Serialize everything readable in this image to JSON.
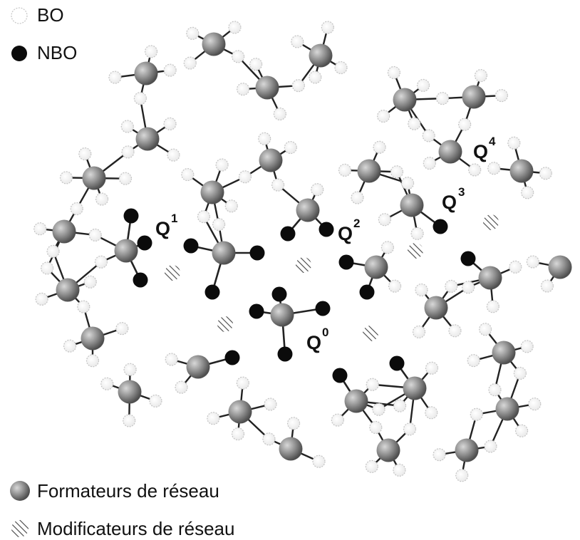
{
  "legend": {
    "bo": "BO",
    "nbo": "NBO",
    "formers": "Formateurs de réseau",
    "modifiers": "Modificateurs de réseau"
  },
  "labels": {
    "q0": {
      "main": "Q",
      "sup": "0"
    },
    "q1": {
      "main": "Q",
      "sup": "1"
    },
    "q2": {
      "main": "Q",
      "sup": "2"
    },
    "q3": {
      "main": "Q",
      "sup": "3"
    },
    "q4": {
      "main": "Q",
      "sup": "4"
    }
  },
  "colors": {
    "bo": "#ffffff",
    "nbo": "#0b0b0b",
    "former": "#8f8f8f",
    "modifier_hatch": "#444444",
    "bond": "#222222"
  }
}
